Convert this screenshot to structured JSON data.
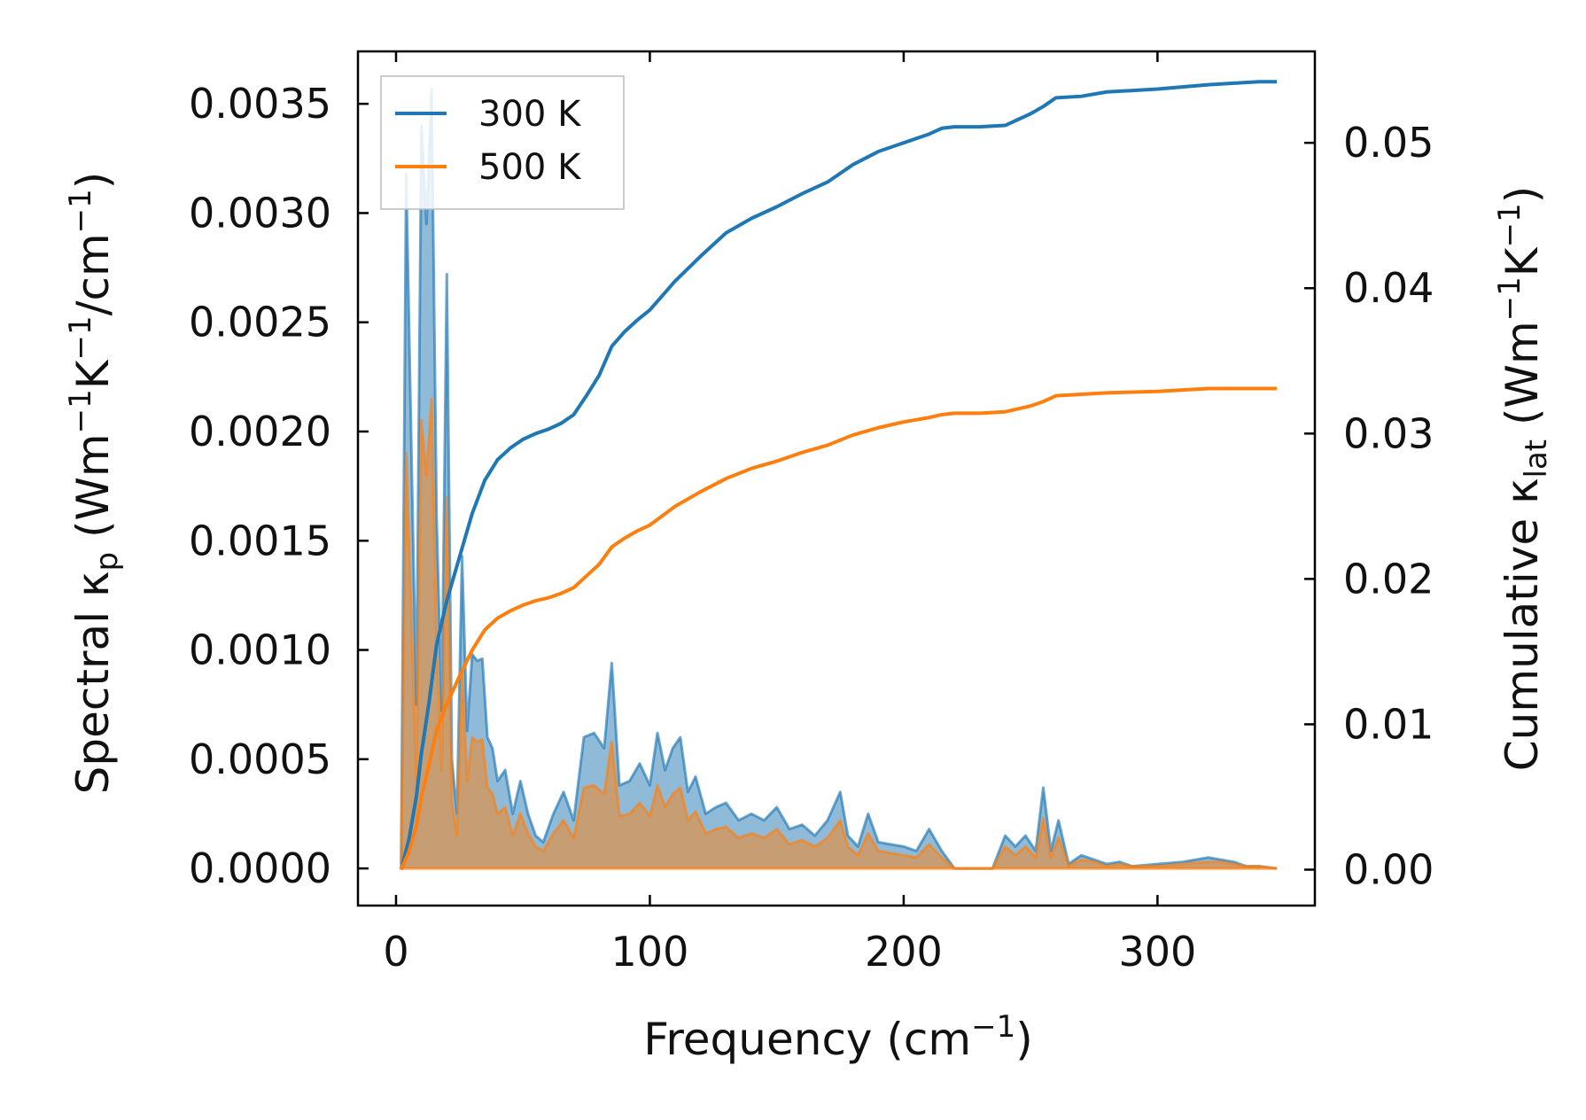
{
  "chart_data": {
    "type": "area",
    "xlabel_main": "Frequency (cm",
    "xlabel_sup": "−1",
    "xlabel_end": ")",
    "ylabel_left_prefix": "Spectral κ",
    "ylabel_left_sub": "p",
    "ylabel_left_units": " (Wm",
    "ylabel_left_sup1": "−1",
    "ylabel_left_mid": "K",
    "ylabel_left_sup2": "−1",
    "ylabel_left_mid2": "/cm",
    "ylabel_left_sup3": "−1",
    "ylabel_left_end": ")",
    "ylabel_right_prefix": "Cumulative κ",
    "ylabel_right_sub": "lat",
    "ylabel_right_units": " (Wm",
    "ylabel_right_sup1": "−1",
    "ylabel_right_mid": "K",
    "ylabel_right_sup2": "−1",
    "ylabel_right_end": ")",
    "xlim": [
      -15,
      362
    ],
    "ylim_left": [
      -0.00017,
      0.00374
    ],
    "ylim_right": [
      -0.00247,
      0.05629
    ],
    "x_ticks": [
      0,
      100,
      200,
      300
    ],
    "x_tick_labels": [
      "0",
      "100",
      "200",
      "300"
    ],
    "y_left_ticks": [
      0,
      0.0005,
      0.001,
      0.0015,
      0.002,
      0.0025,
      0.003,
      0.0035
    ],
    "y_left_tick_labels": [
      "0.0000",
      "0.0005",
      "0.0010",
      "0.0015",
      "0.0020",
      "0.0025",
      "0.0030",
      "0.0035"
    ],
    "y_right_ticks": [
      0,
      0.01,
      0.02,
      0.03,
      0.04,
      0.05
    ],
    "y_right_tick_labels": [
      "0.00",
      "0.01",
      "0.02",
      "0.03",
      "0.04",
      "0.05"
    ],
    "legend": {
      "position": "top-left",
      "entries": [
        "300 K",
        "500 K"
      ]
    },
    "colors": {
      "s300": "#1f77b4",
      "s500": "#ff7f0e"
    },
    "series": [
      {
        "name": "300 K",
        "spectral": {
          "x": [
            2,
            4,
            6,
            8,
            10,
            12,
            14,
            16,
            18,
            20,
            22,
            24,
            26,
            28,
            30,
            32,
            34,
            36,
            38,
            40,
            43,
            46,
            49,
            52,
            55,
            58,
            62,
            66,
            70,
            74,
            78,
            82,
            85,
            88,
            92,
            96,
            100,
            103,
            106,
            109,
            112,
            115,
            118,
            122,
            126,
            130,
            135,
            140,
            145,
            150,
            155,
            160,
            165,
            170,
            175,
            178,
            182,
            186,
            190,
            195,
            200,
            205,
            210,
            215,
            220,
            225,
            230,
            235,
            240,
            244,
            248,
            252,
            255,
            258,
            261,
            265,
            270,
            275,
            280,
            285,
            290,
            300,
            310,
            320,
            325,
            330,
            335,
            340,
            347
          ],
          "y": [
            2e-05,
            0.00318,
            0.00195,
            0.00075,
            0.0034,
            0.00295,
            0.00357,
            0.0016,
            0.00072,
            0.00272,
            0.0005,
            0.00025,
            0.00143,
            0.00063,
            0.00098,
            0.00095,
            0.00096,
            0.0006,
            0.00055,
            0.0004,
            0.00045,
            0.00025,
            0.0004,
            0.00025,
            0.00015,
            0.00012,
            0.00025,
            0.00035,
            0.00022,
            0.0006,
            0.00062,
            0.00055,
            0.00094,
            0.00038,
            0.0004,
            0.00048,
            0.00038,
            0.00062,
            0.00045,
            0.00055,
            0.0006,
            0.00035,
            0.00042,
            0.00025,
            0.00028,
            0.0003,
            0.00022,
            0.00025,
            0.00022,
            0.00028,
            0.00018,
            0.0002,
            0.00015,
            0.00022,
            0.00035,
            0.00015,
            0.0001,
            0.00025,
            0.00012,
            0.00011,
            0.0001,
            8e-05,
            0.00018,
            8e-05,
            0.0,
            0.0,
            0.0,
            0.0,
            0.00015,
            0.0001,
            0.00015,
            8e-05,
            0.00037,
            8e-05,
            0.00022,
            2e-05,
            6e-05,
            4e-05,
            2e-05,
            3e-05,
            1e-05,
            2e-05,
            3e-05,
            5e-05,
            4e-05,
            3e-05,
            1e-05,
            1e-05,
            0.0
          ]
        },
        "cumulative": {
          "x": [
            2,
            5,
            8,
            10,
            13,
            16,
            20,
            25,
            30,
            35,
            40,
            45,
            50,
            55,
            60,
            65,
            70,
            75,
            80,
            85,
            90,
            95,
            100,
            110,
            120,
            130,
            140,
            150,
            160,
            170,
            180,
            190,
            200,
            210,
            215,
            220,
            230,
            240,
            250,
            255,
            260,
            270,
            280,
            300,
            320,
            330,
            340,
            347
          ],
          "y": [
            0.0,
            0.002,
            0.005,
            0.008,
            0.0115,
            0.0155,
            0.0185,
            0.0215,
            0.0245,
            0.0268,
            0.0282,
            0.029,
            0.0296,
            0.03,
            0.0303,
            0.0307,
            0.0313,
            0.0326,
            0.034,
            0.036,
            0.037,
            0.0378,
            0.0385,
            0.0405,
            0.0422,
            0.0438,
            0.0448,
            0.0456,
            0.0465,
            0.0473,
            0.0485,
            0.0494,
            0.05,
            0.0506,
            0.051,
            0.0511,
            0.0511,
            0.0512,
            0.052,
            0.0525,
            0.0531,
            0.0532,
            0.0535,
            0.0537,
            0.054,
            0.0541,
            0.0542,
            0.0542
          ]
        }
      },
      {
        "name": "500 K",
        "spectral": {
          "x": [
            2,
            4,
            6,
            8,
            10,
            12,
            14,
            16,
            18,
            20,
            22,
            24,
            26,
            28,
            30,
            32,
            34,
            36,
            38,
            40,
            43,
            46,
            49,
            52,
            55,
            58,
            62,
            66,
            70,
            74,
            78,
            82,
            85,
            88,
            92,
            96,
            100,
            103,
            106,
            109,
            112,
            115,
            118,
            122,
            126,
            130,
            135,
            140,
            145,
            150,
            155,
            160,
            165,
            170,
            175,
            178,
            182,
            186,
            190,
            195,
            200,
            205,
            210,
            215,
            220,
            225,
            230,
            235,
            240,
            244,
            248,
            252,
            255,
            258,
            261,
            265,
            270,
            275,
            280,
            285,
            290,
            300,
            310,
            320,
            325,
            330,
            335,
            340,
            347
          ],
          "y": [
            1e-05,
            0.0019,
            0.00115,
            0.0004,
            0.00205,
            0.0018,
            0.00215,
            0.001,
            0.00045,
            0.0017,
            0.0003,
            0.00015,
            0.0009,
            0.0004,
            0.0006,
            0.00058,
            0.00059,
            0.00037,
            0.00034,
            0.00025,
            0.00028,
            0.00015,
            0.00025,
            0.00016,
            0.0001,
            8e-05,
            0.00016,
            0.00022,
            0.00014,
            0.00037,
            0.00038,
            0.00034,
            0.00058,
            0.00024,
            0.00025,
            0.0003,
            0.00024,
            0.00038,
            0.00028,
            0.00034,
            0.00037,
            0.00022,
            0.00026,
            0.00016,
            0.00018,
            0.00019,
            0.00014,
            0.00016,
            0.00014,
            0.00018,
            0.00011,
            0.00013,
            0.0001,
            0.00014,
            0.00022,
            0.0001,
            6e-05,
            0.00016,
            8e-05,
            7e-05,
            6e-05,
            5e-05,
            0.00011,
            5e-05,
            0.0,
            0.0,
            0.0,
            0.0,
            0.0001,
            6e-05,
            0.0001,
            5e-05,
            0.00023,
            5e-05,
            0.00014,
            1e-05,
            4e-05,
            3e-05,
            1e-05,
            2e-05,
            1e-05,
            1e-05,
            2e-05,
            3e-05,
            3e-05,
            2e-05,
            1e-05,
            1e-05,
            0.0
          ]
        },
        "cumulative": {
          "x": [
            2,
            5,
            8,
            10,
            13,
            16,
            20,
            25,
            30,
            35,
            40,
            45,
            50,
            55,
            60,
            65,
            70,
            75,
            80,
            85,
            90,
            95,
            100,
            110,
            120,
            130,
            140,
            150,
            160,
            170,
            180,
            190,
            200,
            210,
            215,
            220,
            230,
            240,
            250,
            255,
            260,
            270,
            280,
            300,
            320,
            330,
            340,
            347
          ],
          "y": [
            0.0,
            0.0012,
            0.003,
            0.005,
            0.0072,
            0.0096,
            0.0114,
            0.0133,
            0.0151,
            0.0165,
            0.0173,
            0.0178,
            0.0182,
            0.0185,
            0.0187,
            0.019,
            0.0194,
            0.0202,
            0.021,
            0.0222,
            0.0228,
            0.0233,
            0.0237,
            0.025,
            0.026,
            0.0269,
            0.0276,
            0.0281,
            0.0287,
            0.0292,
            0.0299,
            0.0304,
            0.0308,
            0.0311,
            0.0313,
            0.0314,
            0.0314,
            0.0315,
            0.0319,
            0.0322,
            0.0326,
            0.0327,
            0.0328,
            0.0329,
            0.0331,
            0.0331,
            0.0331,
            0.0331
          ]
        }
      }
    ]
  }
}
